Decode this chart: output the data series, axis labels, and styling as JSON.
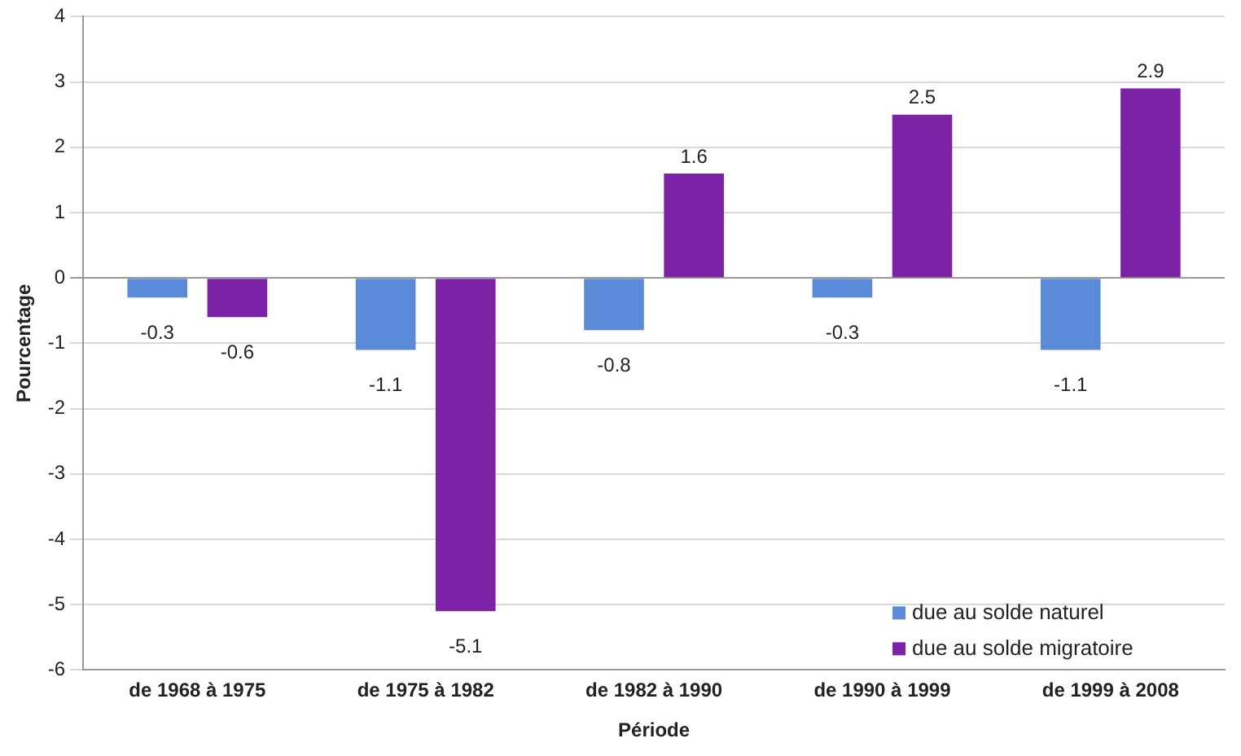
{
  "chart_data": {
    "type": "bar",
    "xlabel": "Période",
    "ylabel": "Pourcentage",
    "categories": [
      "de 1968 à 1975",
      "de 1975 à 1982",
      "de 1982 à 1990",
      "de 1990 à 1999",
      "de 1999 à 2008"
    ],
    "series": [
      {
        "name": "due au solde naturel",
        "color": "#5b8bd8",
        "values": [
          -0.3,
          -1.1,
          -0.8,
          -0.3,
          -1.1
        ]
      },
      {
        "name": "due au solde migratoire",
        "color": "#7b22a6",
        "values": [
          -0.6,
          -5.1,
          1.6,
          2.5,
          2.9
        ]
      }
    ],
    "ylim": [
      -6,
      4
    ],
    "yticks": [
      -6,
      -5,
      -4,
      -3,
      -2,
      -1,
      0,
      1,
      2,
      3,
      4
    ],
    "grid": "y",
    "legend": "bottom right",
    "data_labels": true
  }
}
